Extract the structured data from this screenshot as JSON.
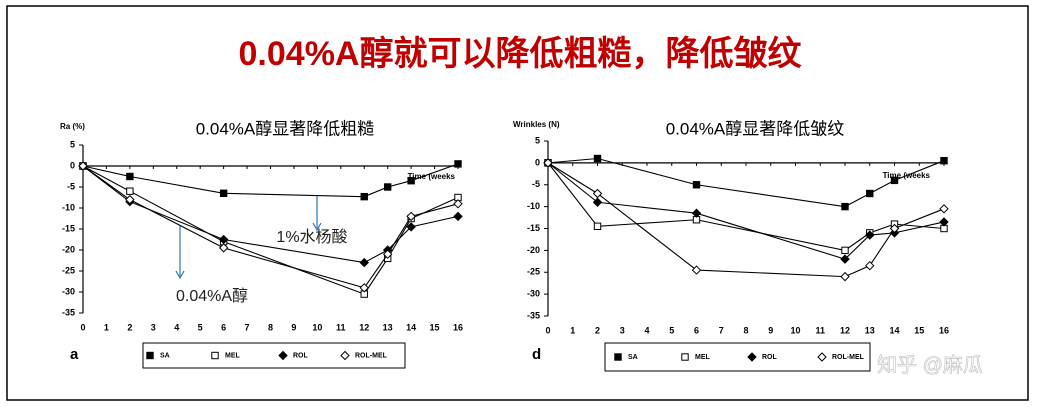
{
  "title": "0.04%A醇就可以降低粗糙，降低皱纹",
  "watermark": "知乎 @麻瓜",
  "chart_data": [
    {
      "type": "line",
      "title": "0.04%A醇显著降低粗糙",
      "y_label": "Ra (%)",
      "x_label": "Time (weeks",
      "panel_label": "a",
      "x": [
        0,
        2,
        6,
        12,
        13,
        14,
        16
      ],
      "xlim": [
        0,
        16
      ],
      "xticks": [
        0,
        1,
        2,
        3,
        4,
        5,
        6,
        7,
        8,
        9,
        10,
        11,
        12,
        13,
        14,
        15,
        16
      ],
      "ylim": [
        -35,
        5
      ],
      "yticks": [
        5,
        0,
        -5,
        -10,
        -15,
        -20,
        -25,
        -30,
        -35
      ],
      "series": [
        {
          "name": "SA",
          "color": "#000000",
          "marker": "square-filled",
          "values": [
            0,
            -2.5,
            -6.5,
            -7.3,
            -5,
            -3.5,
            0.5
          ]
        },
        {
          "name": "MEL",
          "color": "#000000",
          "marker": "square-open",
          "values": [
            0,
            -6,
            -18,
            -30.5,
            -22,
            -12.5,
            -7.5
          ]
        },
        {
          "name": "ROL",
          "color": "#000000",
          "marker": "diamond-filled",
          "values": [
            0,
            -8.5,
            -17.5,
            -23,
            -20,
            -14.5,
            -12
          ]
        },
        {
          "name": "ROL-MEL",
          "color": "#000000",
          "marker": "diamond-open",
          "values": [
            0,
            -8,
            -19.5,
            -29,
            -21,
            -12,
            -9
          ]
        }
      ],
      "annotations": [
        "1%水杨酸",
        "0.04%A醇"
      ],
      "annotation_color": "#2e75b6"
    },
    {
      "type": "line",
      "title": "0.04%A醇显著降低皱纹",
      "y_label": "Wrinkles (N)",
      "x_label": "Time (weeks",
      "panel_label": "d",
      "x": [
        0,
        2,
        6,
        12,
        13,
        14,
        16
      ],
      "xlim": [
        0,
        16
      ],
      "xticks": [
        0,
        1,
        2,
        3,
        4,
        5,
        6,
        7,
        8,
        9,
        10,
        11,
        12,
        13,
        14,
        15,
        16
      ],
      "ylim": [
        -35,
        5
      ],
      "yticks": [
        5,
        0,
        -5,
        -10,
        -15,
        -20,
        -25,
        -30,
        -35
      ],
      "series": [
        {
          "name": "SA",
          "color": "#000000",
          "marker": "square-filled",
          "values": [
            0,
            1,
            -5,
            -10,
            -7,
            -4,
            0.5
          ]
        },
        {
          "name": "MEL",
          "color": "#000000",
          "marker": "square-open",
          "values": [
            0,
            -14.5,
            -13,
            -20,
            -16,
            -14,
            -15
          ]
        },
        {
          "name": "ROL",
          "color": "#000000",
          "marker": "diamond-filled",
          "values": [
            0,
            -9,
            -11.5,
            -22,
            -16.5,
            -16,
            -13.5
          ]
        },
        {
          "name": "ROL-MEL",
          "color": "#000000",
          "marker": "diamond-open",
          "values": [
            0,
            -7,
            -24.5,
            -26,
            -23.5,
            -15,
            -10.5
          ]
        }
      ],
      "annotations": [],
      "annotation_color": "#2e75b6"
    }
  ]
}
